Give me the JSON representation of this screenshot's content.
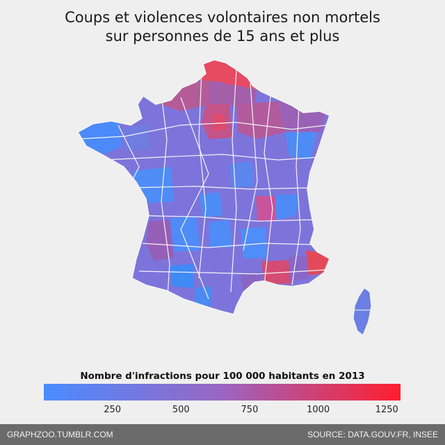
{
  "title_line1": "Coups et violences volontaires non mortels",
  "title_line2": "sur personnes de 15 ans et plus",
  "legend": {
    "title": "Nombre d'infractions pour 100 000 habitants en 2013",
    "min": 0,
    "max": 1300,
    "ticks": [
      "250",
      "500",
      "750",
      "1000",
      "1250"
    ],
    "tick_values": [
      250,
      500,
      750,
      1000,
      1250
    ],
    "color_low": "#4a8cff",
    "color_mid": "#9a66c2",
    "color_high": "#ff1e2e"
  },
  "footer": {
    "credit": "GRAPHZOO.TUMBLR.COM",
    "source": "SOURCE: DATA.GOUV.FR, INSEE"
  }
}
